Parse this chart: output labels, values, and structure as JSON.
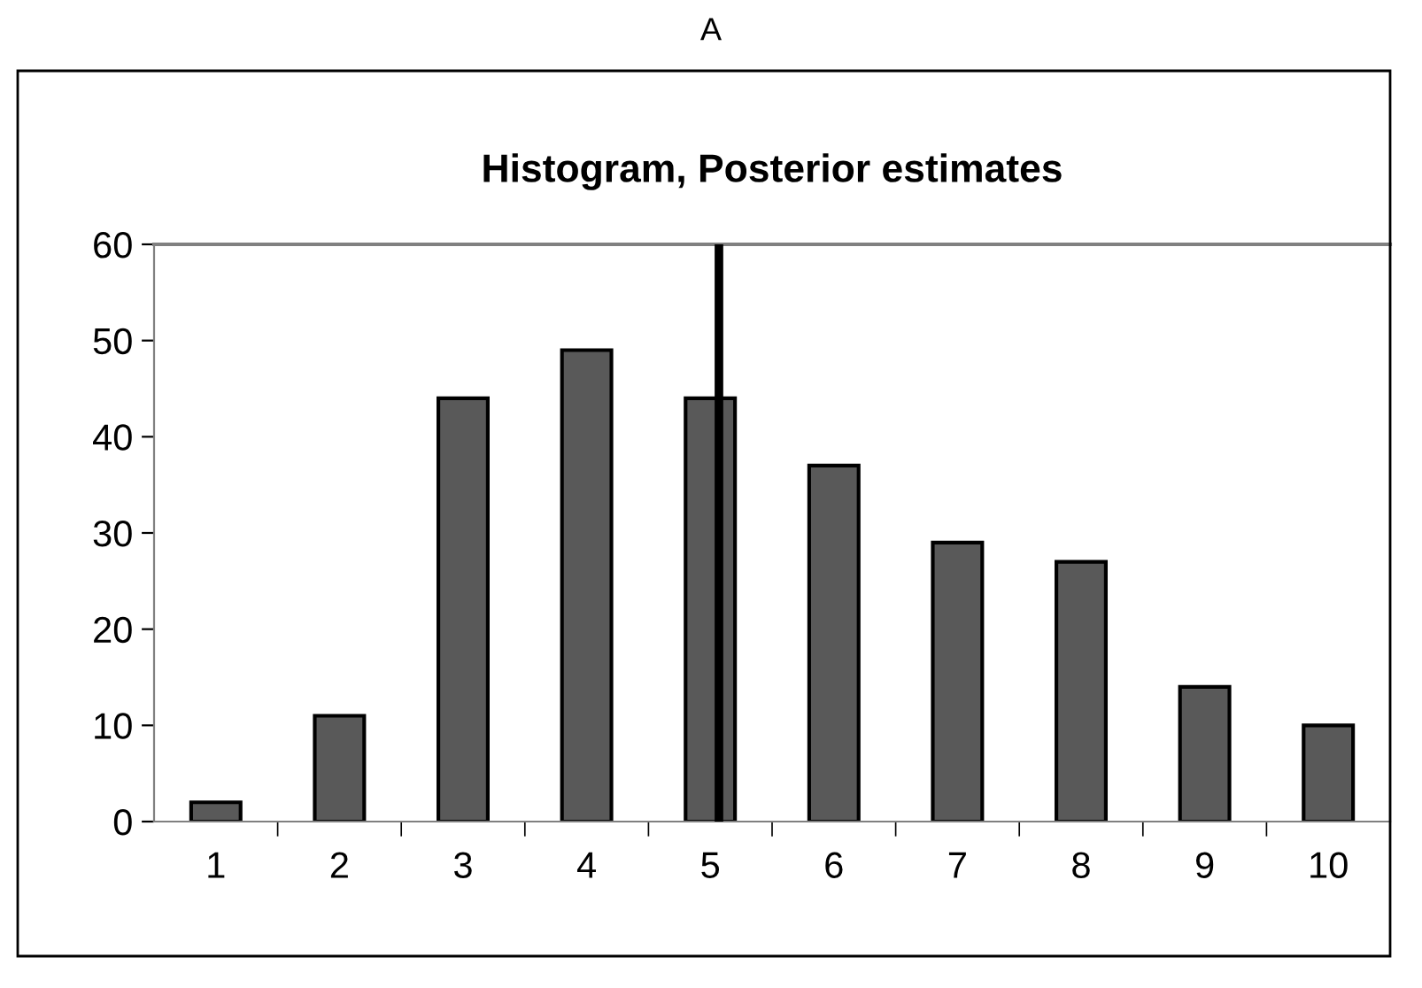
{
  "chart_data": {
    "type": "bar",
    "title": "A",
    "subtitle": "Histogram, Posterior estimates",
    "x": [
      1,
      2,
      3,
      4,
      5,
      6,
      7,
      8,
      9,
      10
    ],
    "values": [
      2,
      11,
      44,
      49,
      44,
      37,
      29,
      27,
      14,
      10
    ],
    "color": "#595959",
    "xlim": [
      0.5,
      10.5
    ],
    "xticks": [
      1,
      2,
      3,
      4,
      5,
      6,
      7,
      8,
      9,
      10,
      {
        "value": 1.5,
        "label": null
      },
      {
        "value": 2.5,
        "label": null
      },
      {
        "value": 3.5,
        "label": null
      },
      {
        "value": 4.5,
        "label": null
      },
      {
        "value": 5.5,
        "label": null
      },
      {
        "value": 6.5,
        "label": null
      },
      {
        "value": 7.5,
        "label": null
      },
      {
        "value": 8.5,
        "label": null
      },
      {
        "value": 9.5,
        "label": null
      },
      {
        "value": 10.5,
        "label": null
      }
    ],
    "ylim": [
      0,
      60
    ],
    "yticks": [
      0,
      10,
      20,
      30,
      40,
      50,
      60
    ],
    "ref_lines": [
      {
        "axis": "x",
        "value": 5.07,
        "color": "#000000",
        "line_style": "solid"
      }
    ],
    "grid": false,
    "legend": false
  }
}
